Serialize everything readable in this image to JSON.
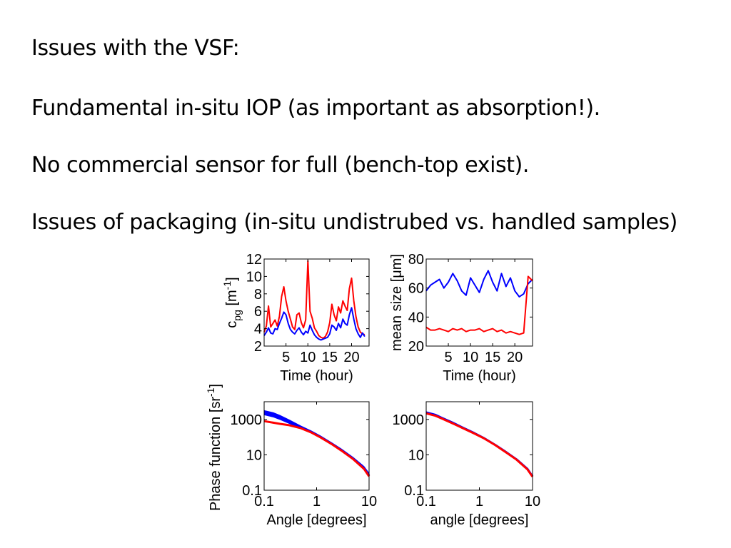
{
  "slide": {
    "heading": "Issues with the VSF:",
    "bullets": [
      "Fundamental in-situ IOP (as important as absorption!).",
      "No commercial sensor for full (bench-top exist).",
      "Issues of packaging (in-situ undistrubed vs. handled samples)"
    ]
  },
  "chart_data": [
    {
      "type": "line",
      "panel": "top-left",
      "xlabel": "Time (hour)",
      "ylabel": "c_pg [m^-1]",
      "ylabel_parts": {
        "base": "c",
        "sub": "pg",
        "unit_open": "[m",
        "sup": "-1",
        "unit_close": "]"
      },
      "xlim": [
        0,
        24
      ],
      "ylim": [
        2,
        12
      ],
      "xticks": [
        5,
        10,
        15,
        20
      ],
      "xtick_labels": [
        "5",
        "10",
        "15",
        "20"
      ],
      "yticks": [
        2,
        4,
        6,
        8,
        10,
        12
      ],
      "ytick_labels": [
        "2",
        "4",
        "6",
        "8",
        "10",
        "12"
      ],
      "series": [
        {
          "name": "red",
          "color": "#ff0000",
          "x": [
            0,
            0.5,
            1,
            1.5,
            2,
            2.5,
            3,
            3.5,
            4,
            4.5,
            5,
            5.5,
            6,
            6.5,
            7,
            7.5,
            8,
            8.5,
            9,
            9.5,
            10,
            10.5,
            11,
            11.5,
            12,
            12.5,
            13,
            13.5,
            14,
            14.5,
            15,
            15.5,
            16,
            16.5,
            17,
            17.5,
            18,
            18.5,
            19,
            19.5,
            20,
            20.5,
            21,
            21.5,
            22,
            22.5,
            23
          ],
          "y": [
            3.6,
            4.3,
            6.6,
            4.2,
            4.6,
            5.0,
            4.3,
            5.4,
            7.7,
            8.8,
            7.2,
            6.0,
            5.1,
            4.2,
            3.9,
            5.6,
            5.8,
            4.7,
            4.1,
            5.0,
            11.8,
            6.0,
            5.2,
            4.1,
            3.7,
            3.2,
            3.0,
            2.9,
            3.1,
            3.6,
            4.7,
            6.8,
            5.6,
            4.9,
            6.5,
            5.8,
            7.2,
            6.6,
            6.1,
            8.6,
            9.8,
            7.2,
            5.4,
            4.2,
            3.6,
            3.4,
            3.3
          ]
        },
        {
          "name": "blue",
          "color": "#0000ff",
          "x": [
            0,
            0.5,
            1,
            1.5,
            2,
            2.5,
            3,
            3.5,
            4,
            4.5,
            5,
            5.5,
            6,
            6.5,
            7,
            7.5,
            8,
            8.5,
            9,
            9.5,
            10,
            10.5,
            11,
            11.5,
            12,
            12.5,
            13,
            13.5,
            14,
            14.5,
            15,
            15.5,
            16,
            16.5,
            17,
            17.5,
            18,
            18.5,
            19,
            19.5,
            20,
            20.5,
            21,
            21.5,
            22,
            22.5,
            23
          ],
          "y": [
            3.2,
            3.6,
            4.1,
            3.5,
            3.4,
            4.0,
            3.9,
            4.6,
            5.2,
            5.9,
            5.6,
            4.6,
            3.9,
            3.6,
            3.4,
            3.8,
            4.1,
            3.6,
            3.3,
            3.7,
            3.5,
            4.4,
            3.8,
            3.3,
            3.0,
            2.8,
            2.7,
            2.8,
            2.9,
            3.0,
            3.4,
            4.4,
            4.2,
            3.8,
            4.6,
            4.1,
            5.1,
            4.6,
            4.4,
            5.6,
            6.4,
            5.1,
            4.0,
            3.4,
            3.0,
            3.5,
            3.1
          ]
        }
      ]
    },
    {
      "type": "line",
      "panel": "top-right",
      "xlabel": "Time (hour)",
      "ylabel": "mean size [μm]",
      "xlim": [
        0,
        24
      ],
      "ylim": [
        20,
        80
      ],
      "xticks": [
        5,
        10,
        15,
        20
      ],
      "xtick_labels": [
        "5",
        "10",
        "15",
        "20"
      ],
      "yticks": [
        20,
        40,
        60,
        80
      ],
      "ytick_labels": [
        "20",
        "40",
        "60",
        "80"
      ],
      "series": [
        {
          "name": "blue",
          "color": "#0000ff",
          "x": [
            0,
            1,
            2,
            3,
            4,
            5,
            6,
            7,
            8,
            9,
            10,
            11,
            12,
            13,
            14,
            15,
            16,
            17,
            18,
            19,
            20,
            21,
            22,
            23,
            24
          ],
          "y": [
            58,
            62,
            64,
            66,
            60,
            64,
            70,
            65,
            58,
            55,
            67,
            62,
            57,
            66,
            72,
            64,
            58,
            70,
            61,
            67,
            58,
            54,
            56,
            63,
            66
          ]
        },
        {
          "name": "red",
          "color": "#ff0000",
          "x": [
            0,
            1,
            2,
            3,
            4,
            5,
            6,
            7,
            8,
            9,
            10,
            11,
            12,
            13,
            14,
            15,
            16,
            17,
            18,
            19,
            20,
            21,
            22,
            23,
            24
          ],
          "y": [
            33,
            31,
            31,
            32,
            31,
            30,
            32,
            31,
            32,
            30,
            31,
            31,
            32,
            30,
            31,
            32,
            30,
            31,
            29,
            30,
            29,
            28,
            29,
            68,
            65
          ]
        }
      ]
    },
    {
      "type": "line",
      "panel": "bottom-left",
      "xlabel": "Angle [degrees]",
      "ylabel": "Phase function [sr^-1]",
      "ylabel_parts": {
        "text": "Phase function [sr",
        "sup": "-1",
        "close": "]"
      },
      "xscale": "log",
      "yscale": "log",
      "xlim": [
        0.1,
        10
      ],
      "ylim": [
        0.1,
        10000
      ],
      "xticks": [
        0.1,
        1,
        10
      ],
      "xtick_labels": [
        "0.1",
        "1",
        "10"
      ],
      "yticks": [
        0.1,
        10,
        1000
      ],
      "ytick_labels": [
        "0.1",
        "10",
        "1000"
      ],
      "series": [
        {
          "name": "blue",
          "color": "#0000ff",
          "x": [
            0.1,
            0.15,
            0.2,
            0.3,
            0.5,
            0.8,
            1.2,
            2,
            3,
            5,
            8,
            10
          ],
          "y": [
            2000,
            1500,
            1100,
            650,
            350,
            190,
            100,
            40,
            18,
            6,
            1.8,
            0.7
          ],
          "y_upper": [
            3200,
            2400,
            1700,
            950,
            430,
            220,
            115,
            46,
            21,
            7,
            2.2,
            0.9
          ]
        },
        {
          "name": "red",
          "color": "#ff0000",
          "x": [
            0.1,
            0.15,
            0.2,
            0.3,
            0.5,
            0.8,
            1.2,
            2,
            3,
            5,
            8,
            10
          ],
          "y": [
            800,
            650,
            560,
            470,
            320,
            180,
            95,
            38,
            17,
            5.6,
            1.6,
            0.6
          ]
        }
      ]
    },
    {
      "type": "line",
      "panel": "bottom-right",
      "xlabel": "angle [degrees]",
      "ylabel": "",
      "xscale": "log",
      "yscale": "log",
      "xlim": [
        0.1,
        10
      ],
      "ylim": [
        0.1,
        10000
      ],
      "xticks": [
        0.1,
        1,
        10
      ],
      "xtick_labels": [
        "0.1",
        "1",
        "10"
      ],
      "yticks": [
        0.1,
        10,
        1000
      ],
      "ytick_labels": [
        "0.1",
        "10",
        "1000"
      ],
      "series": [
        {
          "name": "blue",
          "color": "#0000ff",
          "x": [
            0.1,
            0.15,
            0.2,
            0.3,
            0.5,
            0.8,
            1.2,
            2,
            3,
            5,
            8,
            10
          ],
          "y": [
            2500,
            1800,
            1200,
            700,
            330,
            170,
            90,
            36,
            16,
            5.5,
            1.6,
            0.6
          ]
        },
        {
          "name": "red",
          "color": "#ff0000",
          "x": [
            0.1,
            0.15,
            0.2,
            0.3,
            0.5,
            0.8,
            1.2,
            2,
            3,
            5,
            8,
            10
          ],
          "y": [
            2200,
            1600,
            1100,
            640,
            310,
            160,
            88,
            35,
            15.5,
            5.3,
            1.5,
            0.58
          ]
        }
      ]
    }
  ]
}
